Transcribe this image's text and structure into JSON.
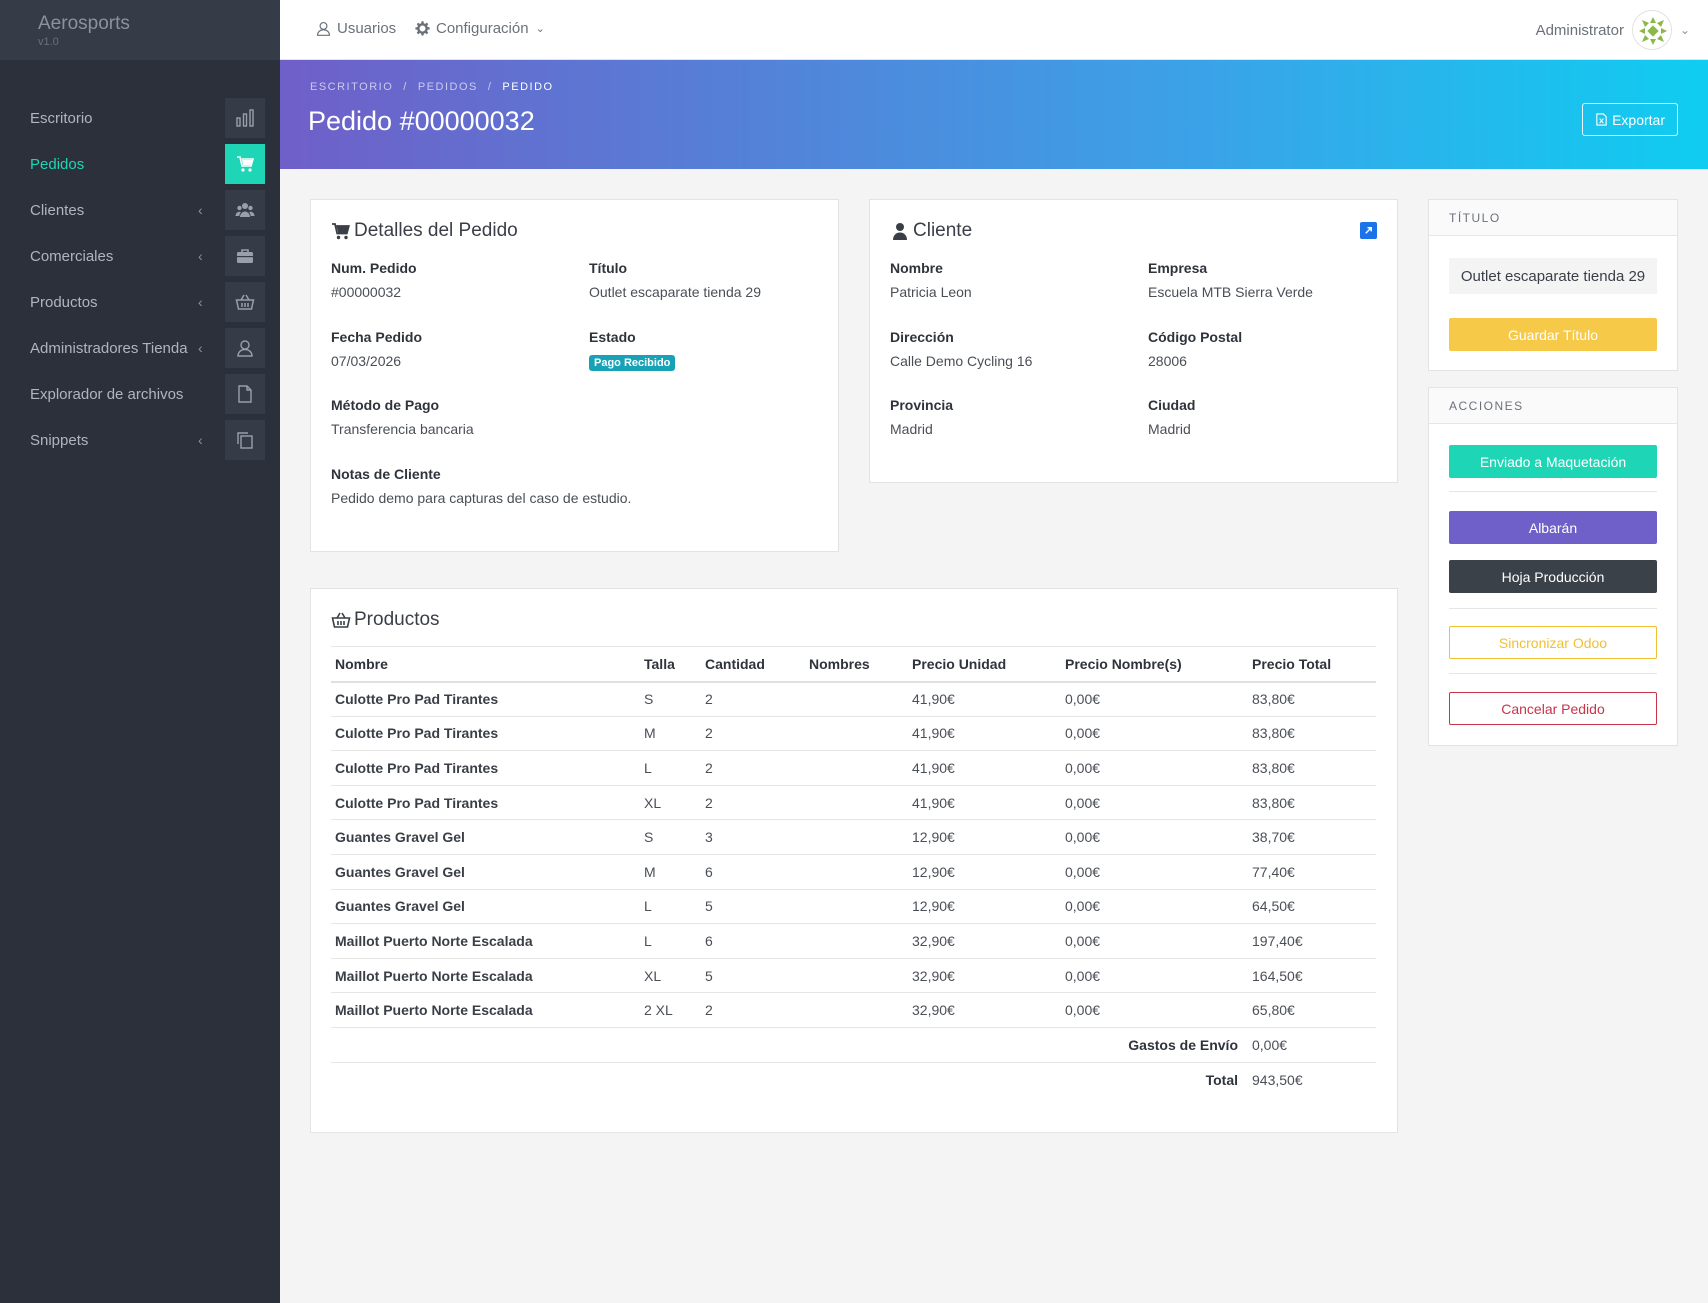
{
  "brand": {
    "name": "Aerosports",
    "version": "v1.0"
  },
  "sidebar": {
    "items": [
      {
        "label": "Escritorio",
        "icon": "bar-chart-icon",
        "chevron": false
      },
      {
        "label": "Pedidos",
        "icon": "cart-icon",
        "chevron": false,
        "active": true
      },
      {
        "label": "Clientes",
        "icon": "users-icon",
        "chevron": true
      },
      {
        "label": "Comerciales",
        "icon": "briefcase-icon",
        "chevron": true
      },
      {
        "label": "Productos",
        "icon": "basket-icon",
        "chevron": true
      },
      {
        "label": "Administradores Tienda",
        "icon": "user-icon",
        "chevron": true
      },
      {
        "label": "Explorador de archivos",
        "icon": "file-icon",
        "chevron": false
      },
      {
        "label": "Snippets",
        "icon": "copy-icon",
        "chevron": true
      }
    ]
  },
  "topbar": {
    "users_label": "Usuarios",
    "config_label": "Configuración",
    "user_name": "Administrator"
  },
  "breadcrumb": {
    "items": [
      "ESCRITORIO",
      "PEDIDOS"
    ],
    "current": "PEDIDO",
    "separator": "/"
  },
  "page": {
    "title": "Pedido #00000032",
    "export_label": "Exportar"
  },
  "order": {
    "title": "Detalles del Pedido",
    "num_label": "Num. Pedido",
    "num_value": "#00000032",
    "titulo_label": "Título",
    "titulo_value": "Outlet escaparate tienda 29",
    "fecha_label": "Fecha Pedido",
    "fecha_value": "07/03/2026",
    "estado_label": "Estado",
    "estado_value": "Pago Recibido",
    "metodo_label": "Método de Pago",
    "metodo_value": "Transferencia bancaria",
    "notas_label": "Notas de Cliente",
    "notas_value": "Pedido demo para capturas del caso de estudio."
  },
  "client": {
    "title": "Cliente",
    "nombre_label": "Nombre",
    "nombre_value": "Patricia Leon",
    "empresa_label": "Empresa",
    "empresa_value": "Escuela MTB Sierra Verde",
    "direccion_label": "Dirección",
    "direccion_value": "Calle Demo Cycling 16",
    "cp_label": "Código Postal",
    "cp_value": "28006",
    "provincia_label": "Provincia",
    "provincia_value": "Madrid",
    "ciudad_label": "Ciudad",
    "ciudad_value": "Madrid"
  },
  "products": {
    "title": "Productos",
    "columns": [
      "Nombre",
      "Talla",
      "Cantidad",
      "Nombres",
      "Precio Unidad",
      "Precio Nombre(s)",
      "Precio Total"
    ],
    "rows": [
      [
        "Culotte Pro Pad Tirantes",
        "S",
        "2",
        "",
        "41,90€",
        "0,00€",
        "83,80€"
      ],
      [
        "Culotte Pro Pad Tirantes",
        "M",
        "2",
        "",
        "41,90€",
        "0,00€",
        "83,80€"
      ],
      [
        "Culotte Pro Pad Tirantes",
        "L",
        "2",
        "",
        "41,90€",
        "0,00€",
        "83,80€"
      ],
      [
        "Culotte Pro Pad Tirantes",
        "XL",
        "2",
        "",
        "41,90€",
        "0,00€",
        "83,80€"
      ],
      [
        "Guantes Gravel Gel",
        "S",
        "3",
        "",
        "12,90€",
        "0,00€",
        "38,70€"
      ],
      [
        "Guantes Gravel Gel",
        "M",
        "6",
        "",
        "12,90€",
        "0,00€",
        "77,40€"
      ],
      [
        "Guantes Gravel Gel",
        "L",
        "5",
        "",
        "12,90€",
        "0,00€",
        "64,50€"
      ],
      [
        "Maillot Puerto Norte Escalada",
        "L",
        "6",
        "",
        "32,90€",
        "0,00€",
        "197,40€"
      ],
      [
        "Maillot Puerto Norte Escalada",
        "XL",
        "5",
        "",
        "32,90€",
        "0,00€",
        "164,50€"
      ],
      [
        "Maillot Puerto Norte Escalada",
        "2 XL",
        "2",
        "",
        "32,90€",
        "0,00€",
        "65,80€"
      ]
    ],
    "shipping_label": "Gastos de Envío",
    "shipping_value": "0,00€",
    "total_label": "Total",
    "total_value": "943,50€"
  },
  "titulo_panel": {
    "header": "TÍTULO",
    "value": "Outlet escaparate tienda 29",
    "save_label": "Guardar Título"
  },
  "acciones_panel": {
    "header": "ACCIONES",
    "maquetacion_label": "Enviado a Maquetación",
    "albaran_label": "Albarán",
    "produccion_label": "Hoja Producción",
    "odoo_label": "Sincronizar Odoo",
    "cancel_label": "Cancelar Pedido"
  },
  "colors": {
    "accent": "#1ed6b5",
    "sidebar": "#2b303b",
    "badge": "#17a2b8",
    "warning": "#f7c948",
    "purple": "#6f5fc8",
    "dark": "#3a4149",
    "danger": "#c8344a"
  }
}
